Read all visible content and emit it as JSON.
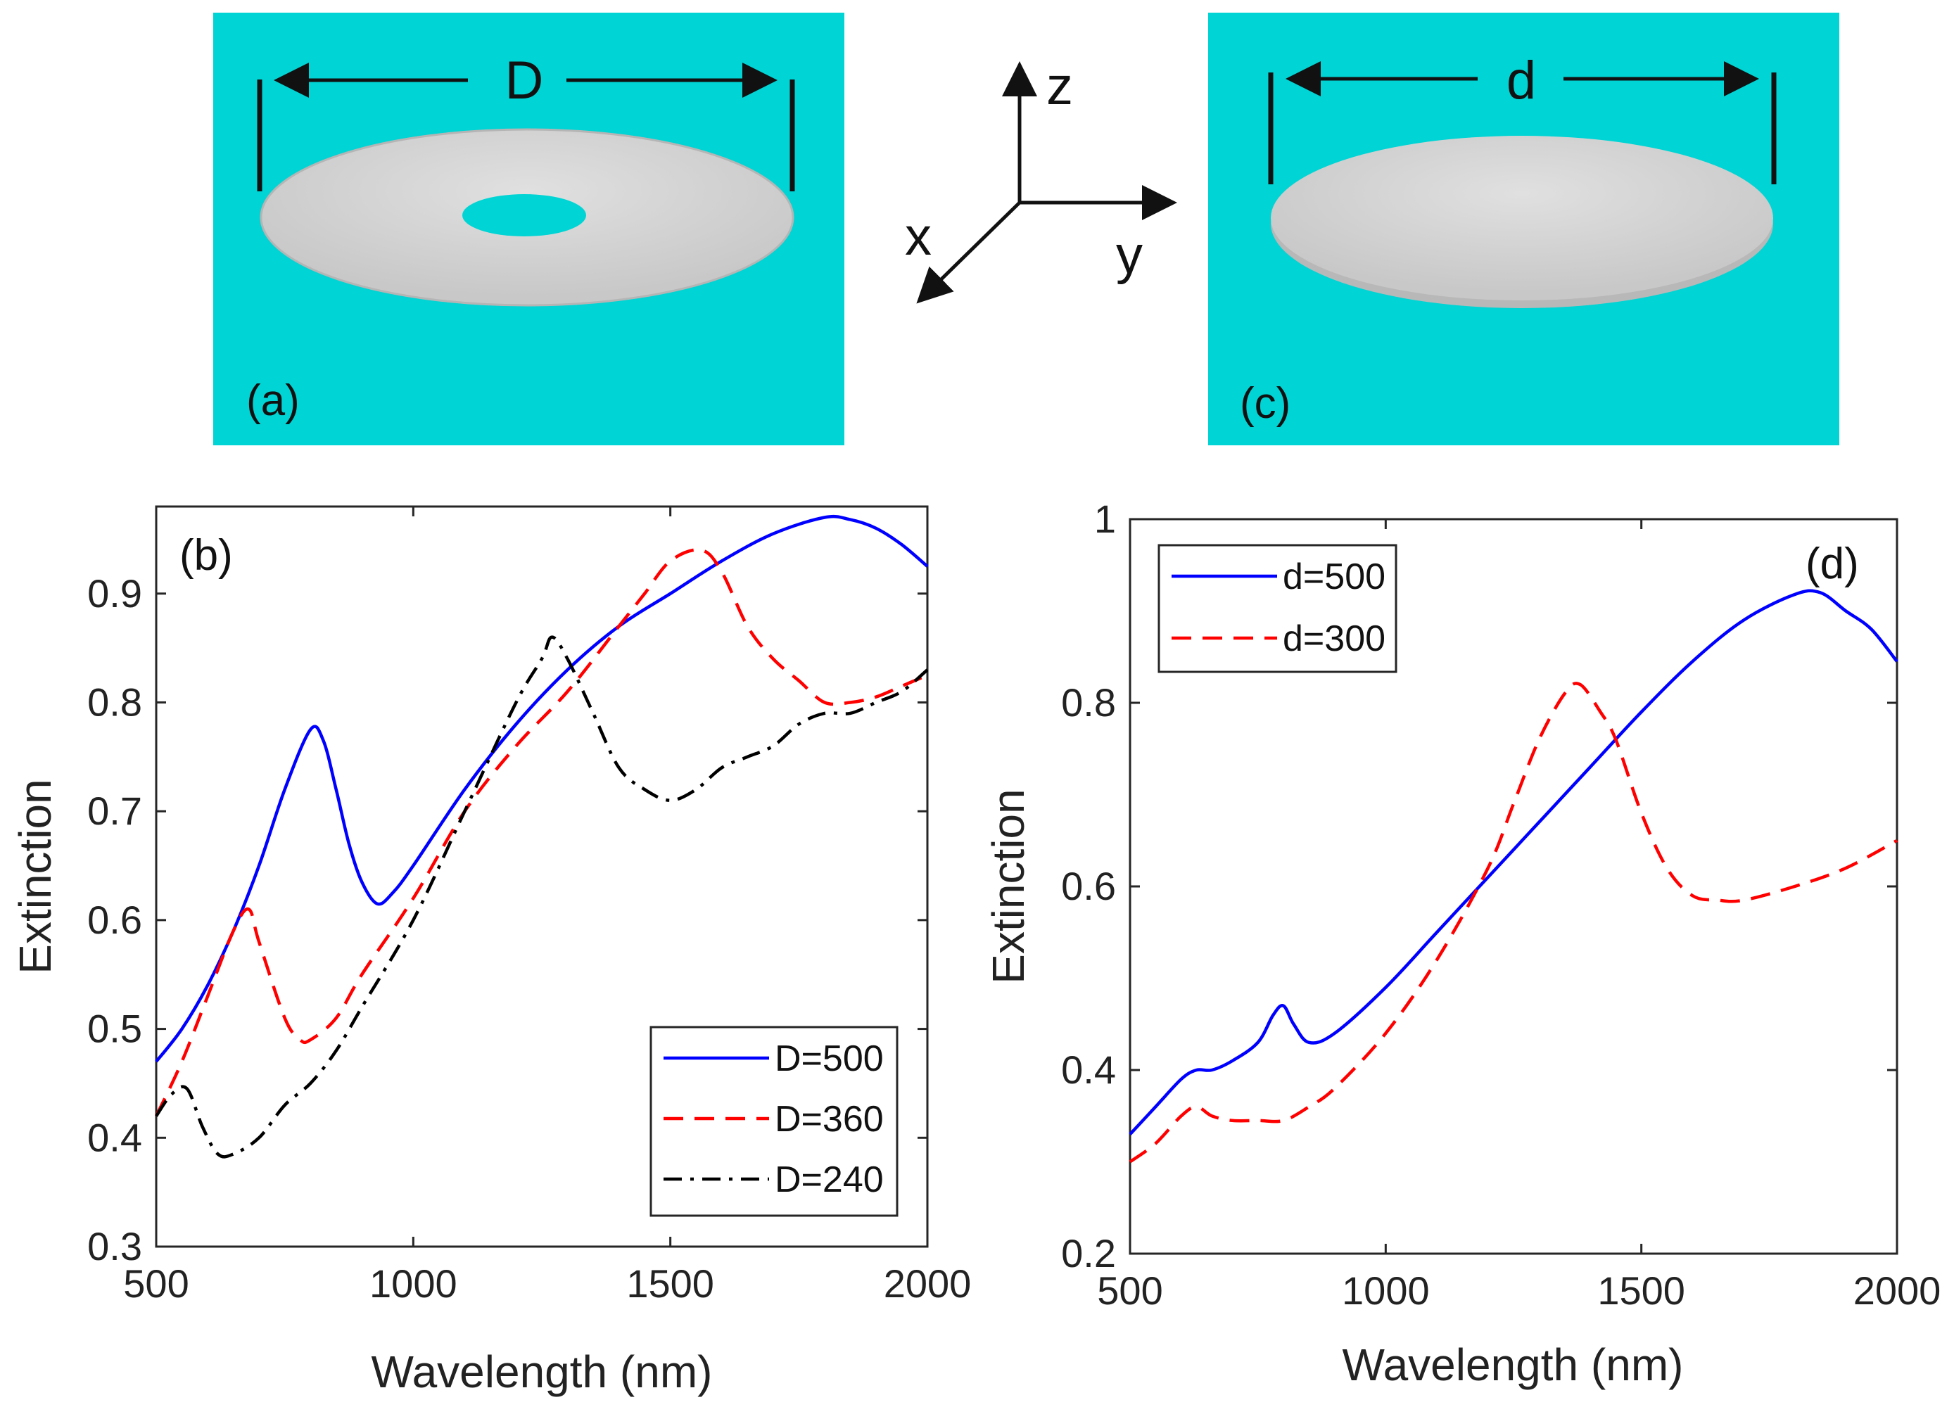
{
  "schematic": {
    "panel_a": {
      "label": "(a)",
      "dimension": "D",
      "shape": "ring-disk"
    },
    "panel_c": {
      "label": "(c)",
      "dimension": "d",
      "shape": "solid-disk"
    },
    "axes": {
      "x": "x",
      "y": "y",
      "z": "z"
    },
    "background_color": "#00D4D4",
    "disk_color": "#D2D2D2"
  },
  "chart_data": [
    {
      "id": "b",
      "type": "line",
      "panel_label": "(b)",
      "xlabel": "Wavelength (nm)",
      "ylabel": "Extinction",
      "xlim": [
        500,
        2000
      ],
      "ylim": [
        0.3,
        0.98
      ],
      "xticks": [
        "500",
        "1000",
        "1500",
        "2000"
      ],
      "yticks": [
        "0.3",
        "0.4",
        "0.5",
        "0.6",
        "0.7",
        "0.8",
        "0.9"
      ],
      "legend_position": "bottom-right",
      "series": [
        {
          "name": "D=500",
          "color": "#0000FF",
          "style": "solid",
          "x": [
            500,
            550,
            600,
            650,
            700,
            750,
            800,
            825,
            850,
            875,
            900,
            930,
            960,
            1000,
            1100,
            1200,
            1300,
            1400,
            1500,
            1600,
            1700,
            1800,
            1850,
            1900,
            1950,
            2000
          ],
          "y": [
            0.47,
            0.5,
            0.54,
            0.59,
            0.65,
            0.72,
            0.775,
            0.765,
            0.72,
            0.67,
            0.635,
            0.615,
            0.625,
            0.65,
            0.72,
            0.78,
            0.83,
            0.87,
            0.9,
            0.93,
            0.955,
            0.97,
            0.968,
            0.96,
            0.945,
            0.925
          ]
        },
        {
          "name": "D=360",
          "color": "#FF0000",
          "style": "dashed",
          "x": [
            500,
            550,
            600,
            650,
            680,
            700,
            750,
            780,
            800,
            850,
            900,
            1000,
            1100,
            1200,
            1300,
            1400,
            1450,
            1500,
            1560,
            1600,
            1650,
            1700,
            1750,
            1800,
            1850,
            1900,
            1950,
            2000
          ],
          "y": [
            0.42,
            0.47,
            0.53,
            0.59,
            0.61,
            0.58,
            0.51,
            0.49,
            0.49,
            0.51,
            0.55,
            0.62,
            0.7,
            0.76,
            0.81,
            0.87,
            0.9,
            0.93,
            0.94,
            0.92,
            0.87,
            0.84,
            0.82,
            0.8,
            0.8,
            0.805,
            0.815,
            0.825
          ]
        },
        {
          "name": "D=240",
          "color": "#000000",
          "style": "dashdot",
          "x": [
            500,
            530,
            560,
            590,
            620,
            650,
            700,
            750,
            800,
            850,
            900,
            1000,
            1100,
            1200,
            1250,
            1270,
            1300,
            1350,
            1400,
            1450,
            1500,
            1550,
            1600,
            1650,
            1700,
            1750,
            1800,
            1850,
            1900,
            1950,
            2000
          ],
          "y": [
            0.42,
            0.44,
            0.445,
            0.41,
            0.385,
            0.385,
            0.4,
            0.43,
            0.45,
            0.48,
            0.52,
            0.6,
            0.7,
            0.8,
            0.84,
            0.86,
            0.84,
            0.79,
            0.74,
            0.72,
            0.71,
            0.72,
            0.74,
            0.75,
            0.76,
            0.78,
            0.79,
            0.79,
            0.8,
            0.81,
            0.83
          ]
        }
      ]
    },
    {
      "id": "d",
      "type": "line",
      "panel_label": "(d)",
      "xlabel": "Wavelength (nm)",
      "ylabel": "Extinction",
      "xlim": [
        500,
        2000
      ],
      "ylim": [
        0.2,
        1.0
      ],
      "xticks": [
        "500",
        "1000",
        "1500",
        "2000"
      ],
      "yticks": [
        "0.2",
        "0.4",
        "0.6",
        "0.8",
        "1"
      ],
      "legend_position": "top-left",
      "series": [
        {
          "name": "d=500",
          "color": "#0000FF",
          "style": "solid",
          "x": [
            500,
            550,
            600,
            630,
            660,
            700,
            750,
            780,
            800,
            820,
            850,
            900,
            1000,
            1100,
            1200,
            1300,
            1400,
            1500,
            1600,
            1700,
            1800,
            1850,
            1900,
            1950,
            2000
          ],
          "y": [
            0.33,
            0.36,
            0.39,
            0.4,
            0.4,
            0.41,
            0.43,
            0.46,
            0.47,
            0.45,
            0.43,
            0.44,
            0.49,
            0.55,
            0.61,
            0.67,
            0.73,
            0.79,
            0.845,
            0.89,
            0.918,
            0.92,
            0.9,
            0.88,
            0.845
          ]
        },
        {
          "name": "d=300",
          "color": "#FF0000",
          "style": "dashed",
          "x": [
            500,
            550,
            600,
            630,
            660,
            700,
            750,
            800,
            850,
            900,
            1000,
            1100,
            1200,
            1250,
            1300,
            1350,
            1380,
            1420,
            1450,
            1500,
            1550,
            1600,
            1650,
            1700,
            1800,
            1900,
            2000
          ],
          "y": [
            0.3,
            0.32,
            0.35,
            0.36,
            0.35,
            0.345,
            0.345,
            0.345,
            0.36,
            0.38,
            0.44,
            0.52,
            0.62,
            0.69,
            0.76,
            0.81,
            0.82,
            0.79,
            0.76,
            0.68,
            0.62,
            0.59,
            0.585,
            0.585,
            0.6,
            0.62,
            0.65
          ]
        }
      ]
    }
  ]
}
